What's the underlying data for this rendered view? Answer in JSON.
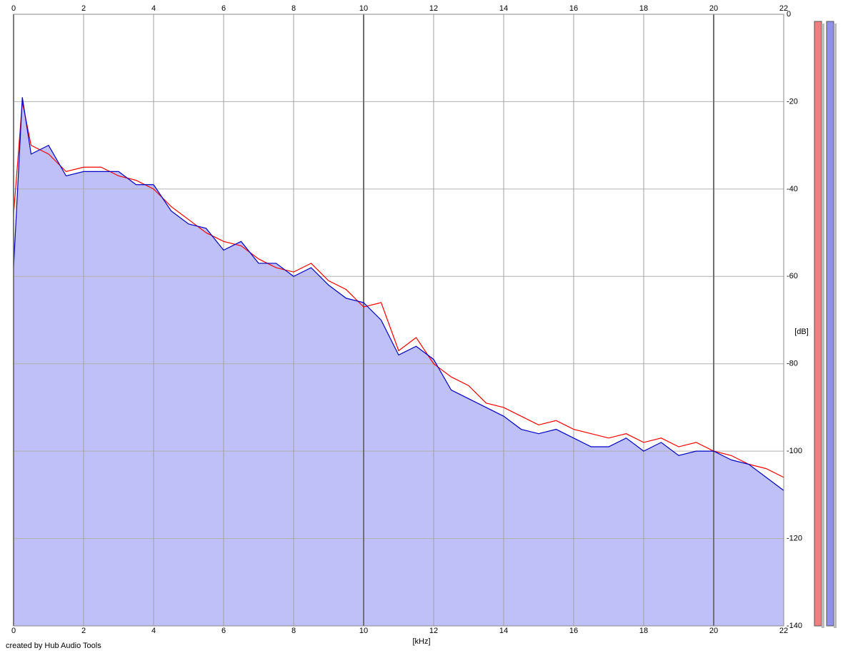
{
  "chart_data": {
    "type": "line",
    "x_label": "[kHz]",
    "y_label": "[dB]",
    "footer": "created by Hub Audio Tools",
    "x": [
      0,
      0.25,
      0.5,
      1,
      1.5,
      2,
      2.5,
      3,
      3.5,
      4,
      4.5,
      5,
      5.5,
      6,
      6.5,
      7,
      7.5,
      8,
      8.5,
      9,
      9.5,
      10,
      10.5,
      11,
      11.5,
      12,
      12.5,
      13,
      13.5,
      14,
      14.5,
      15,
      15.5,
      16,
      16.5,
      17,
      17.5,
      18,
      18.5,
      19,
      19.5,
      20,
      20.5,
      21,
      21.5,
      22
    ],
    "series": [
      {
        "color": "#ff0000",
        "values": [
          -46,
          -20,
          -30,
          -32,
          -36,
          -35,
          -35,
          -37,
          -38,
          -40,
          -44,
          -47,
          -50,
          -52,
          -53,
          -56,
          -58,
          -59,
          -57,
          -61,
          -63,
          -67,
          -66,
          -77,
          -74,
          -80,
          -83,
          -85,
          -89,
          -90,
          -92,
          -94,
          -93,
          -95,
          -96,
          -97,
          -96,
          -98,
          -97,
          -99,
          -98,
          -100,
          -101,
          -103,
          -104,
          -106
        ]
      },
      {
        "color": "#0000c0",
        "fill": "#c0c0f8",
        "values": [
          -58,
          -19,
          -32,
          -30,
          -37,
          -36,
          -36,
          -36,
          -39,
          -39,
          -45,
          -48,
          -49,
          -54,
          -52,
          -57,
          -57,
          -60,
          -58,
          -62,
          -65,
          -66,
          -70,
          -78,
          -76,
          -79,
          -86,
          -88,
          -90,
          -92,
          -95,
          -96,
          -95,
          -97,
          -99,
          -99,
          -97,
          -100,
          -98,
          -101,
          -100,
          -100,
          -102,
          -103,
          -106,
          -109
        ]
      }
    ],
    "xlim": [
      0,
      22
    ],
    "xticks": [
      0,
      2,
      4,
      6,
      8,
      10,
      12,
      14,
      16,
      18,
      20,
      22
    ],
    "ylim": [
      -140,
      0
    ],
    "yticks": [
      0,
      -20,
      -40,
      -60,
      -80,
      -100,
      -120,
      -140
    ],
    "grid": true
  }
}
